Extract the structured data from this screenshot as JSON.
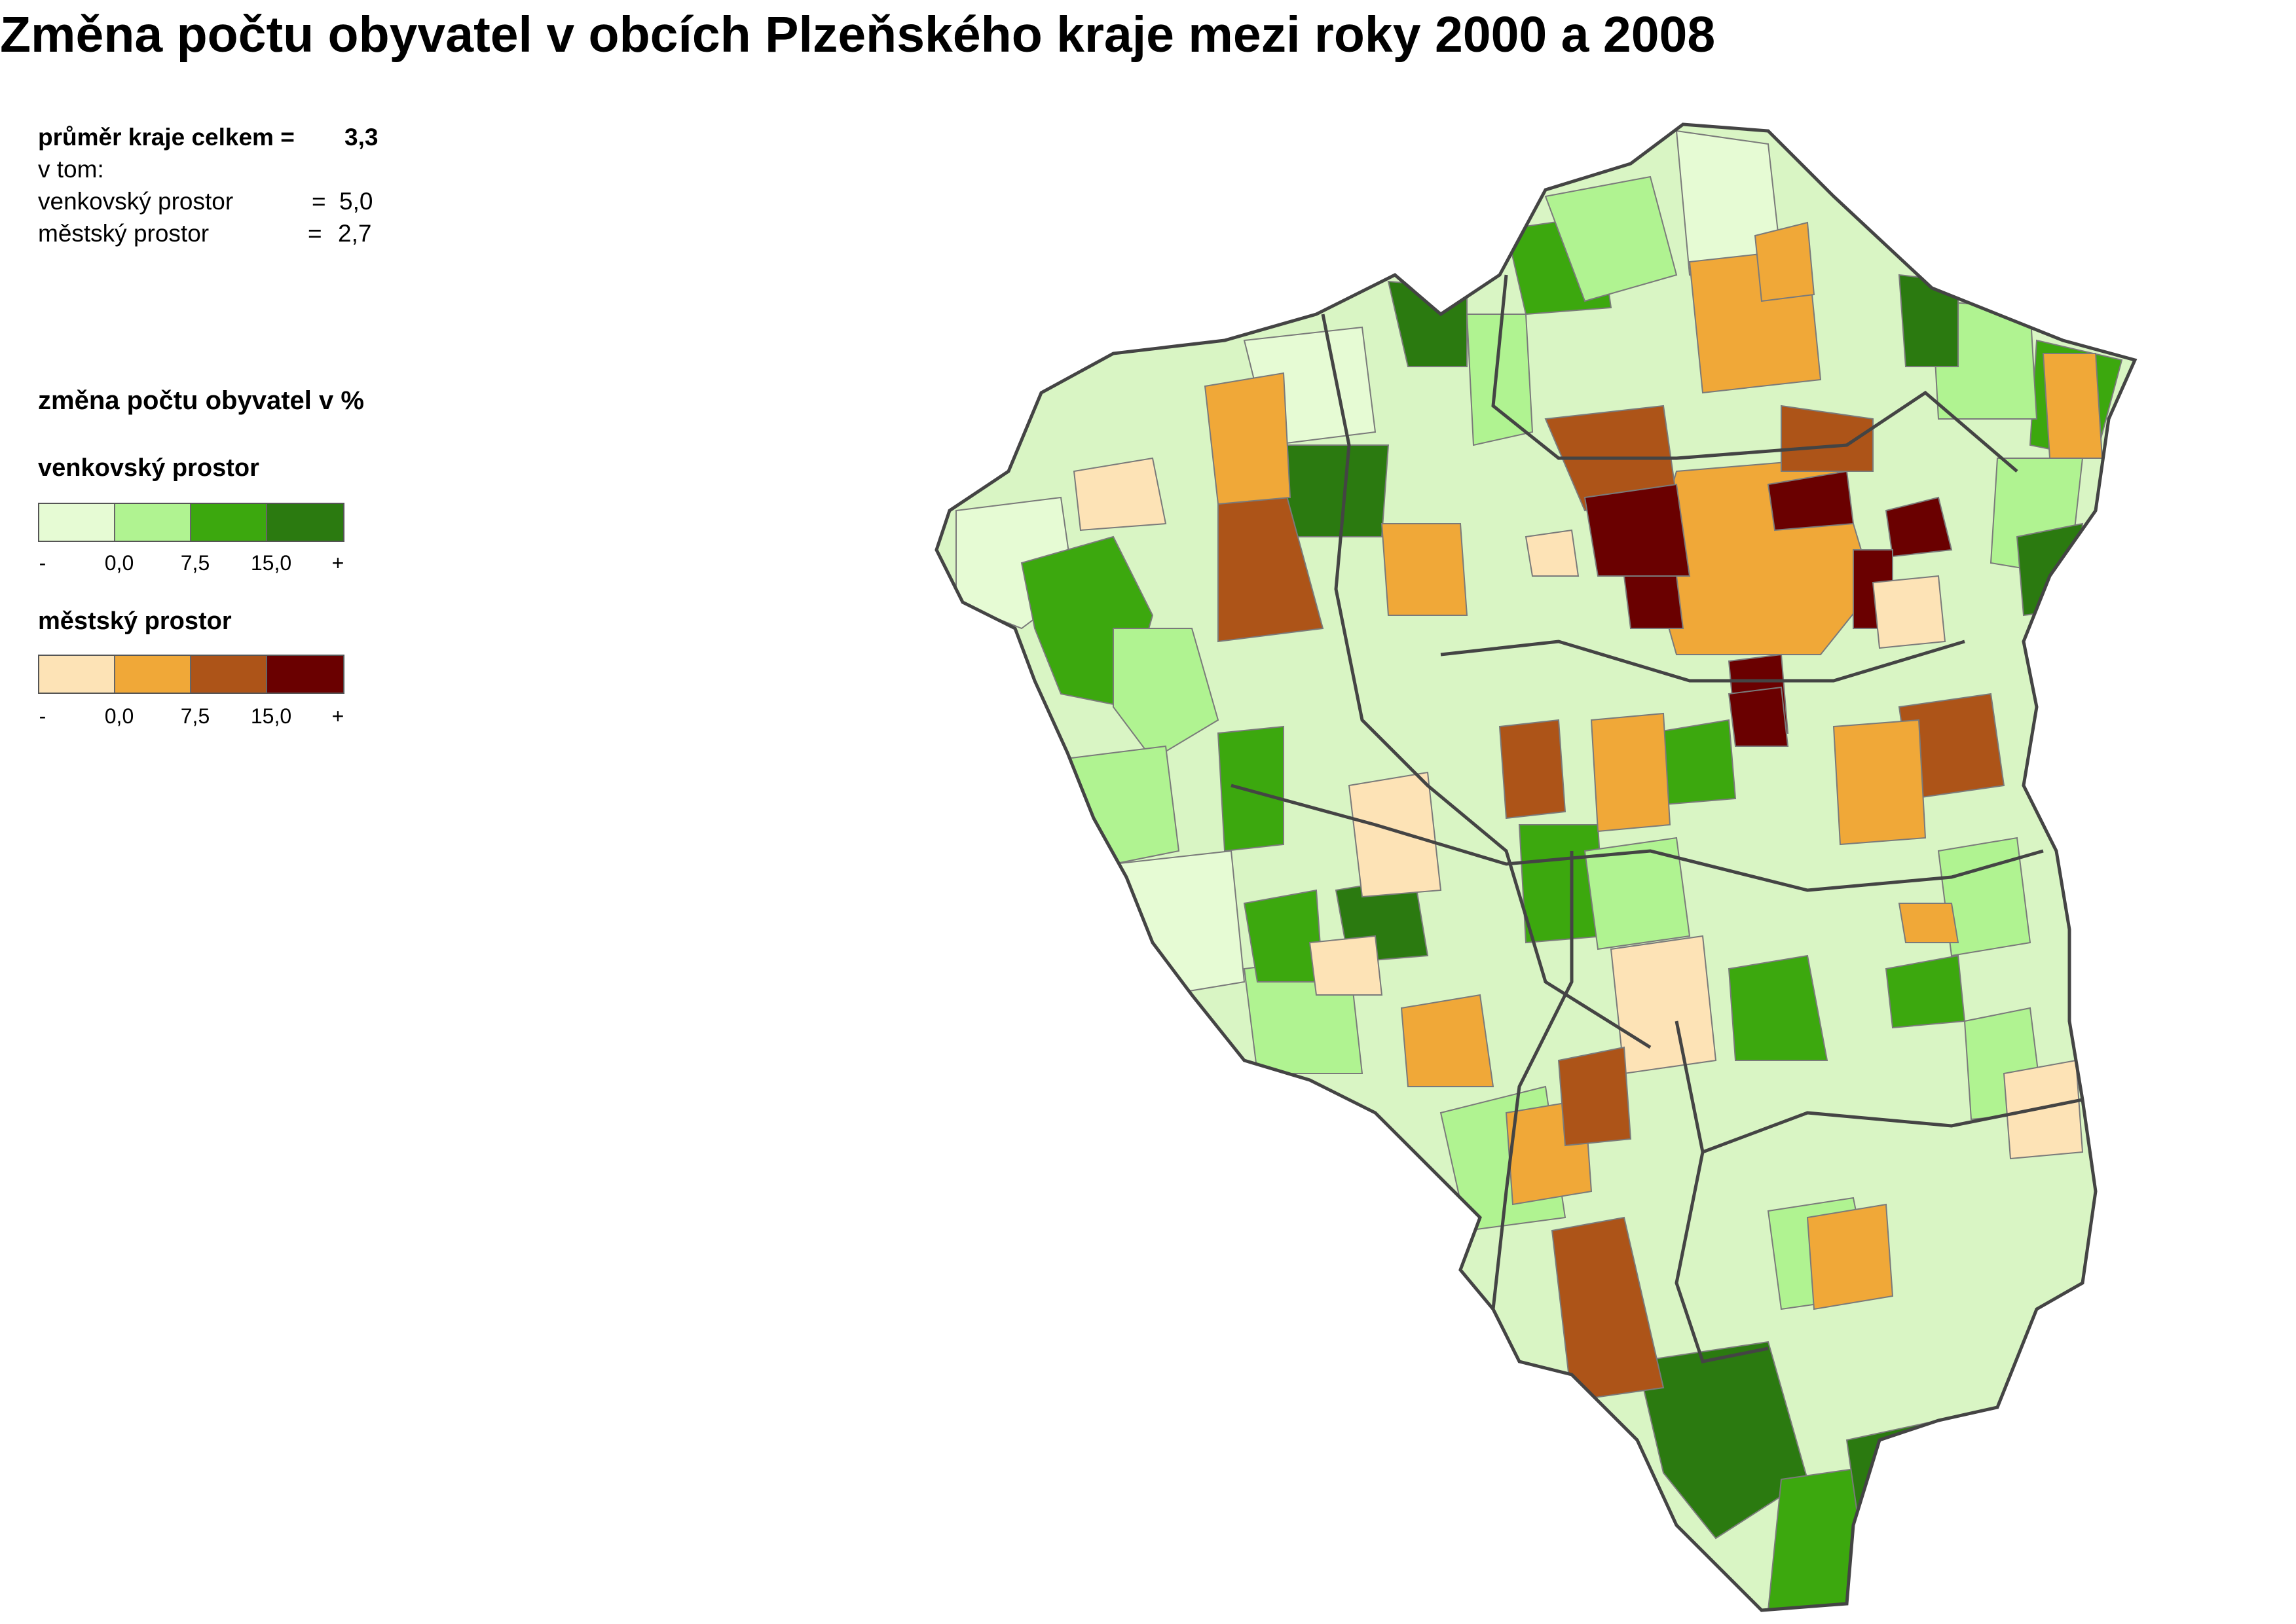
{
  "title": "Změna počtu obyvatel v obcích Plzeňského kraje mezi roky 2000 a 2008",
  "stats": {
    "total_label": "průměr kraje celkem =",
    "total_value": "3,3",
    "v_tom": "v tom:",
    "rural_label": "venkovský prostor",
    "rural_eq": "=",
    "rural_value": "5,0",
    "urban_label": "městský prostor",
    "urban_eq": "=",
    "urban_value": "2,7"
  },
  "legend": {
    "title": "změna počtu obyvatel v %",
    "rural": {
      "label": "venkovský prostor",
      "colors": [
        "#e6fbd4",
        "#b0f391",
        "#3ca80e",
        "#2b7a10"
      ],
      "ticks": [
        "-",
        "0,0",
        "7,5",
        "15,0",
        "+"
      ]
    },
    "urban": {
      "label": "městský prostor",
      "colors": [
        "#fde3b6",
        "#f0a838",
        "#ad5418",
        "#6a0000"
      ],
      "ticks": [
        "-",
        "0,0",
        "7,5",
        "15,0",
        "+"
      ]
    }
  },
  "map": {
    "region": "Plzeňský kraj",
    "outline_color": "#444444",
    "region_fill": "#d9f5c4"
  }
}
